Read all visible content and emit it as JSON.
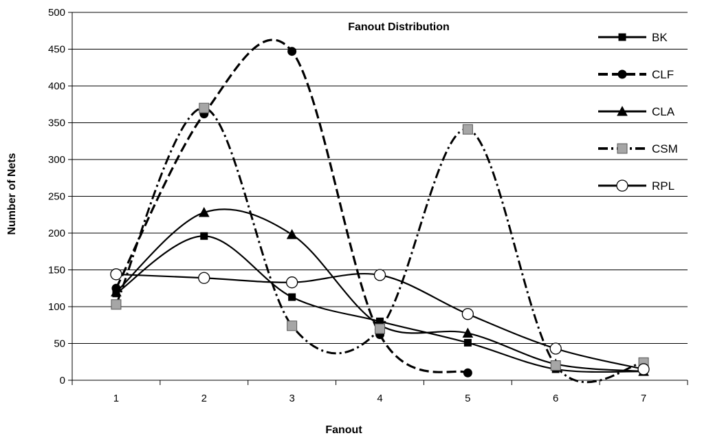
{
  "chart_data": {
    "type": "line",
    "title": "Fanout Distribution",
    "xlabel": "Fanout",
    "ylabel": "Number of Nets",
    "categories": [
      "1",
      "2",
      "3",
      "4",
      "5",
      "6",
      "7"
    ],
    "x": [
      1,
      2,
      3,
      4,
      5,
      6,
      7
    ],
    "ylim": [
      0,
      500
    ],
    "yticks": [
      "0",
      "50",
      "100",
      "150",
      "200",
      "250",
      "300",
      "350",
      "400",
      "450",
      "500"
    ],
    "grid": "horizontal",
    "legend_position": "right",
    "series": [
      {
        "name": "BK",
        "values": [
          118,
          196,
          113,
          80,
          51,
          15,
          12
        ],
        "marker": "square-black",
        "dash": "solid",
        "color": "#000000"
      },
      {
        "name": "CLF",
        "values": [
          125,
          362,
          447,
          62,
          10,
          null,
          null
        ],
        "marker": "circle-black",
        "dash": "dashed",
        "color": "#000000"
      },
      {
        "name": "CLA",
        "values": [
          120,
          228,
          198,
          75,
          64,
          22,
          12
        ],
        "marker": "triangle-black",
        "dash": "solid",
        "color": "#000000"
      },
      {
        "name": "CSM",
        "values": [
          103,
          370,
          74,
          70,
          341,
          20,
          24
        ],
        "marker": "square-gray",
        "dash": "dashdot",
        "color": "#a6a6a6"
      },
      {
        "name": "RPL",
        "values": [
          144,
          139,
          133,
          143,
          90,
          43,
          15
        ],
        "marker": "circle-white",
        "dash": "solid",
        "color": "#ffffff"
      }
    ]
  }
}
